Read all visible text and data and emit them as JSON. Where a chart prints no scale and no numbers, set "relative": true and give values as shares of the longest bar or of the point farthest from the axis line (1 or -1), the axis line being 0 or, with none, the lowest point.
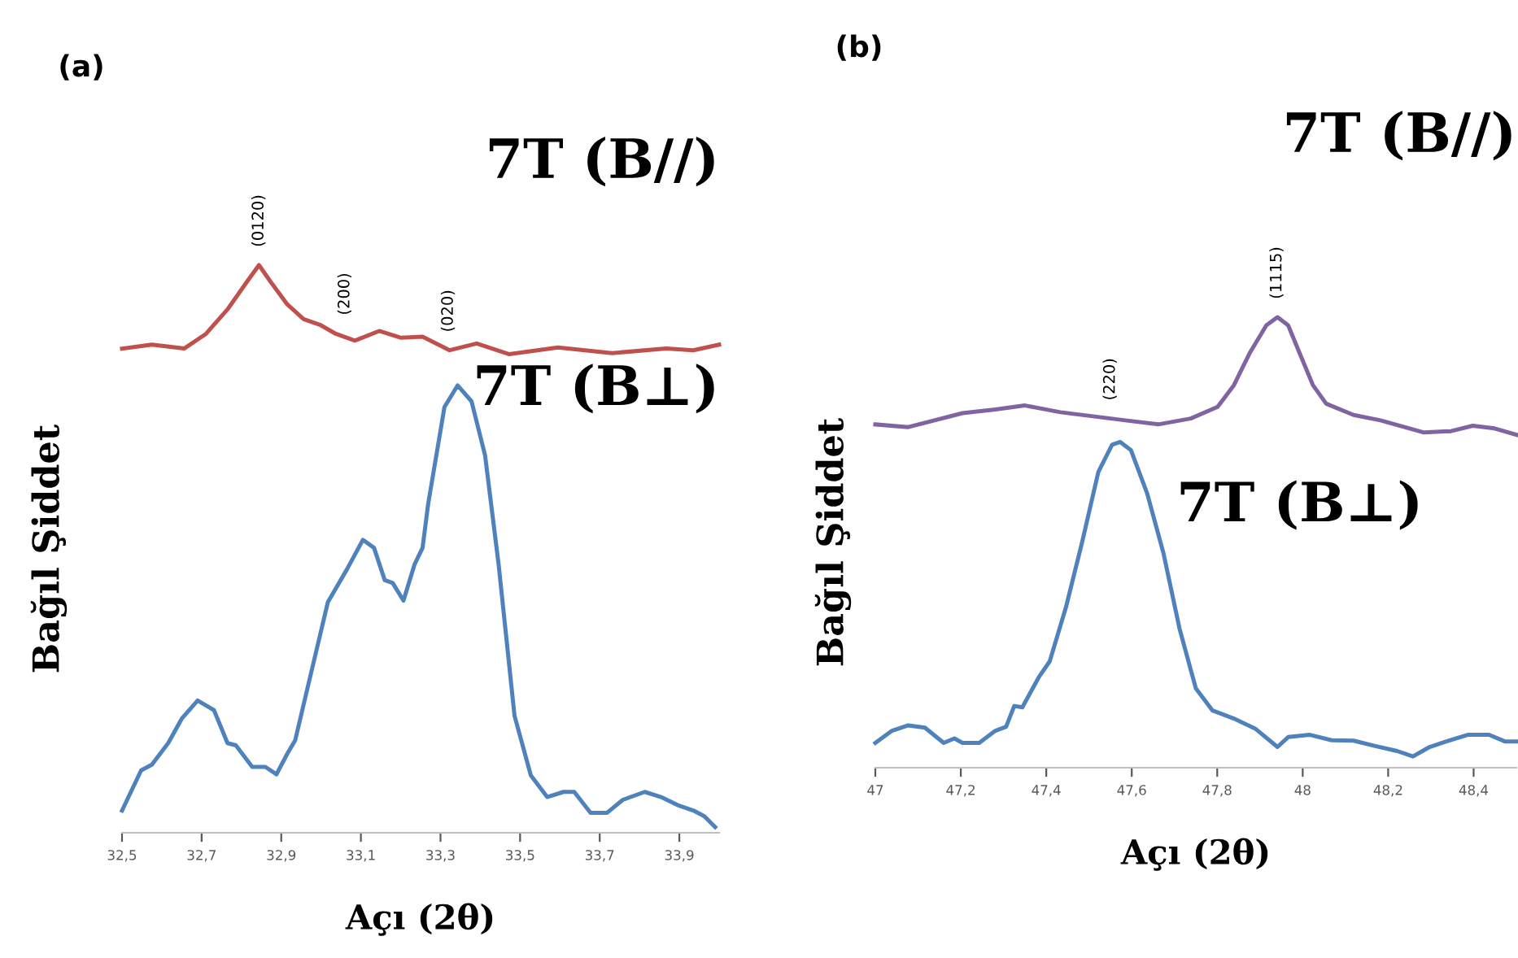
{
  "chart_data": [
    {
      "type": "line",
      "title": "(a)",
      "xlabel": "Açı (2θ)",
      "ylabel": "Bağıl Şiddet",
      "relative": true,
      "xlim": [
        32.5,
        34.0
      ],
      "xticks": [
        {
          "value": 32.5,
          "label": "32,5"
        },
        {
          "value": 32.7,
          "label": "32,7"
        },
        {
          "value": 32.9,
          "label": "32,9"
        },
        {
          "value": 33.1,
          "label": "33,1"
        },
        {
          "value": 33.3,
          "label": "33,3"
        },
        {
          "value": 33.5,
          "label": "33,5"
        },
        {
          "value": 33.7,
          "label": "33,7"
        },
        {
          "value": 33.9,
          "label": "33,9"
        }
      ],
      "tick_labels": "x",
      "grid": false,
      "legend": false,
      "marker": "none",
      "line_style": "solid",
      "series": [
        {
          "name": "7T (B//)",
          "color": "#c0504d",
          "x": [
            32.5,
            32.575,
            32.656,
            32.711,
            32.765,
            32.813,
            32.844,
            32.874,
            32.915,
            32.956,
            32.997,
            33.037,
            33.085,
            33.146,
            33.201,
            33.255,
            33.323,
            33.391,
            33.473,
            33.595,
            33.731,
            33.867,
            33.935,
            34.0
          ],
          "values": [
            0.853,
            0.86,
            0.853,
            0.879,
            0.922,
            0.97,
            1.0,
            0.97,
            0.931,
            0.905,
            0.895,
            0.879,
            0.867,
            0.884,
            0.872,
            0.874,
            0.85,
            0.862,
            0.843,
            0.855,
            0.845,
            0.853,
            0.85,
            0.86
          ]
        },
        {
          "name": "7T (B⊥)",
          "color": "#4f81bd",
          "x": [
            32.5,
            32.548,
            32.575,
            32.616,
            32.65,
            32.69,
            32.731,
            32.765,
            32.786,
            32.827,
            32.86,
            32.888,
            32.915,
            32.935,
            32.969,
            33.017,
            33.065,
            33.105,
            33.133,
            33.16,
            33.18,
            33.207,
            33.235,
            33.255,
            33.269,
            33.31,
            33.343,
            33.378,
            33.412,
            33.446,
            33.486,
            33.527,
            33.568,
            33.609,
            33.636,
            33.677,
            33.718,
            33.758,
            33.813,
            33.854,
            33.895,
            33.936,
            33.963,
            33.99
          ],
          "values": [
            0.039,
            0.11,
            0.12,
            0.158,
            0.201,
            0.233,
            0.216,
            0.158,
            0.154,
            0.116,
            0.116,
            0.103,
            0.139,
            0.163,
            0.264,
            0.406,
            0.464,
            0.516,
            0.502,
            0.445,
            0.44,
            0.409,
            0.473,
            0.502,
            0.579,
            0.75,
            0.788,
            0.76,
            0.665,
            0.473,
            0.206,
            0.101,
            0.063,
            0.072,
            0.072,
            0.035,
            0.035,
            0.058,
            0.072,
            0.063,
            0.049,
            0.039,
            0.029,
            0.01
          ]
        }
      ],
      "annotations": [
        {
          "text": "(0120)",
          "x": 32.844,
          "y": 1.0
        },
        {
          "text": "(200)",
          "x": 33.06,
          "y": 0.88
        },
        {
          "text": "(020)",
          "x": 33.32,
          "y": 0.85
        }
      ]
    },
    {
      "type": "line",
      "title": "(b)",
      "xlabel": "Açı (2θ)",
      "ylabel": "Bağıl Şiddet",
      "relative": true,
      "xlim": [
        47.0,
        48.5
      ],
      "xticks": [
        {
          "value": 47.0,
          "label": "47"
        },
        {
          "value": 47.2,
          "label": "47,2"
        },
        {
          "value": 47.4,
          "label": "47,4"
        },
        {
          "value": 47.6,
          "label": "47,6"
        },
        {
          "value": 47.8,
          "label": "47,8"
        },
        {
          "value": 48.0,
          "label": "48"
        },
        {
          "value": 48.2,
          "label": "48,2"
        },
        {
          "value": 48.4,
          "label": "48,4"
        }
      ],
      "tick_labels": "x",
      "grid": false,
      "legend": false,
      "marker": "none",
      "line_style": "solid",
      "series": [
        {
          "name": "7T (B//)",
          "color": "#8064a2",
          "x": [
            47.0,
            47.077,
            47.204,
            47.281,
            47.35,
            47.433,
            47.509,
            47.585,
            47.662,
            47.738,
            47.801,
            47.839,
            47.877,
            47.915,
            47.941,
            47.966,
            47.992,
            48.024,
            48.055,
            48.119,
            48.182,
            48.284,
            48.347,
            48.398,
            48.449,
            48.5
          ],
          "values": [
            0.762,
            0.756,
            0.787,
            0.795,
            0.804,
            0.789,
            0.78,
            0.771,
            0.762,
            0.775,
            0.801,
            0.849,
            0.922,
            0.982,
            1.0,
            0.982,
            0.922,
            0.849,
            0.808,
            0.783,
            0.771,
            0.744,
            0.747,
            0.759,
            0.753,
            0.739
          ]
        },
        {
          "name": "7T (B⊥)",
          "color": "#4f81bd",
          "x": [
            47.0,
            47.039,
            47.077,
            47.116,
            47.16,
            47.185,
            47.204,
            47.243,
            47.281,
            47.306,
            47.325,
            47.344,
            47.382,
            47.408,
            47.446,
            47.484,
            47.522,
            47.554,
            47.573,
            47.598,
            47.636,
            47.674,
            47.712,
            47.75,
            47.789,
            47.839,
            47.89,
            47.941,
            47.966,
            48.017,
            48.068,
            48.119,
            48.17,
            48.221,
            48.258,
            48.297,
            48.335,
            48.386,
            48.436,
            48.474,
            48.5
          ],
          "values": [
            0.055,
            0.082,
            0.094,
            0.089,
            0.055,
            0.065,
            0.055,
            0.055,
            0.082,
            0.091,
            0.137,
            0.134,
            0.2,
            0.236,
            0.356,
            0.501,
            0.657,
            0.717,
            0.723,
            0.705,
            0.609,
            0.477,
            0.308,
            0.176,
            0.127,
            0.109,
            0.086,
            0.046,
            0.068,
            0.073,
            0.061,
            0.06,
            0.048,
            0.037,
            0.025,
            0.046,
            0.058,
            0.073,
            0.073,
            0.058,
            0.058
          ]
        }
      ],
      "annotations": [
        {
          "text": "(220)",
          "x": 47.55,
          "y": 0.775
        },
        {
          "text": "(1115)",
          "x": 47.94,
          "y": 1.0
        }
      ]
    }
  ]
}
